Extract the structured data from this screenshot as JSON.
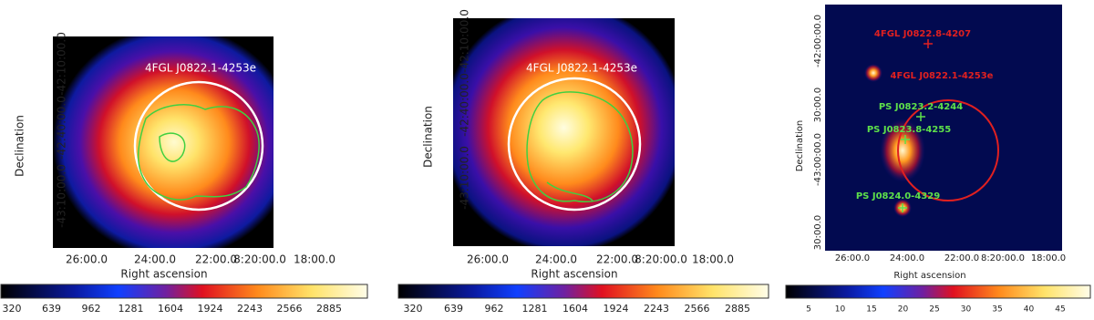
{
  "panels": [
    {
      "title_label": "4FGL J0822.1-4253e",
      "y_label": "Declination",
      "x_label": "Right ascension",
      "y_ticks": [
        "-42:10:00.0",
        "-42:40:00.0",
        "-43:10:00.0"
      ],
      "x_ticks": [
        "26:00.0",
        "24:00.0",
        "22:00.0",
        "8:20:00.0",
        "18:00.0"
      ],
      "colorbar_ticks": [
        "320",
        "639",
        "962",
        "1281",
        "1604",
        "1924",
        "2243",
        "2566",
        "2885"
      ]
    },
    {
      "title_label": "4FGL J0822.1-4253e",
      "y_label": "Declination",
      "x_label": "Right ascension",
      "y_ticks": [
        "-42:10:00.0",
        "-42:40:00.0",
        "-43:10:00.0"
      ],
      "x_ticks": [
        "26:00.0",
        "24:00.0",
        "22:00.0",
        "8:20:00.0",
        "18:00.0"
      ],
      "colorbar_ticks": [
        "320",
        "639",
        "962",
        "1281",
        "1604",
        "1924",
        "2243",
        "2566",
        "2885"
      ]
    },
    {
      "y_label": "Declination",
      "x_label": "Right ascension",
      "y_ticks": [
        "-42:00:00.0",
        "30:00.0",
        "-43:00:00.0",
        "30:00.0"
      ],
      "x_ticks": [
        "26:00.0",
        "24:00.0",
        "22:00.0",
        "8:20:00.0",
        "18:00.0"
      ],
      "colorbar_ticks": [
        "5",
        "10",
        "15",
        "20",
        "25",
        "30",
        "35",
        "40",
        "45"
      ],
      "sources": [
        {
          "name": "4FGL J0822.8-4207",
          "color": "#e02020"
        },
        {
          "name": "4FGL J0822.1-4253e",
          "color": "#e02020"
        },
        {
          "name": "PS J0823.2-4244",
          "color": "#5ee04a"
        },
        {
          "name": "PS J0823.8-4255",
          "color": "#5ee04a"
        },
        {
          "name": "PS J0824.0-4329",
          "color": "#5ee04a"
        }
      ]
    }
  ]
}
